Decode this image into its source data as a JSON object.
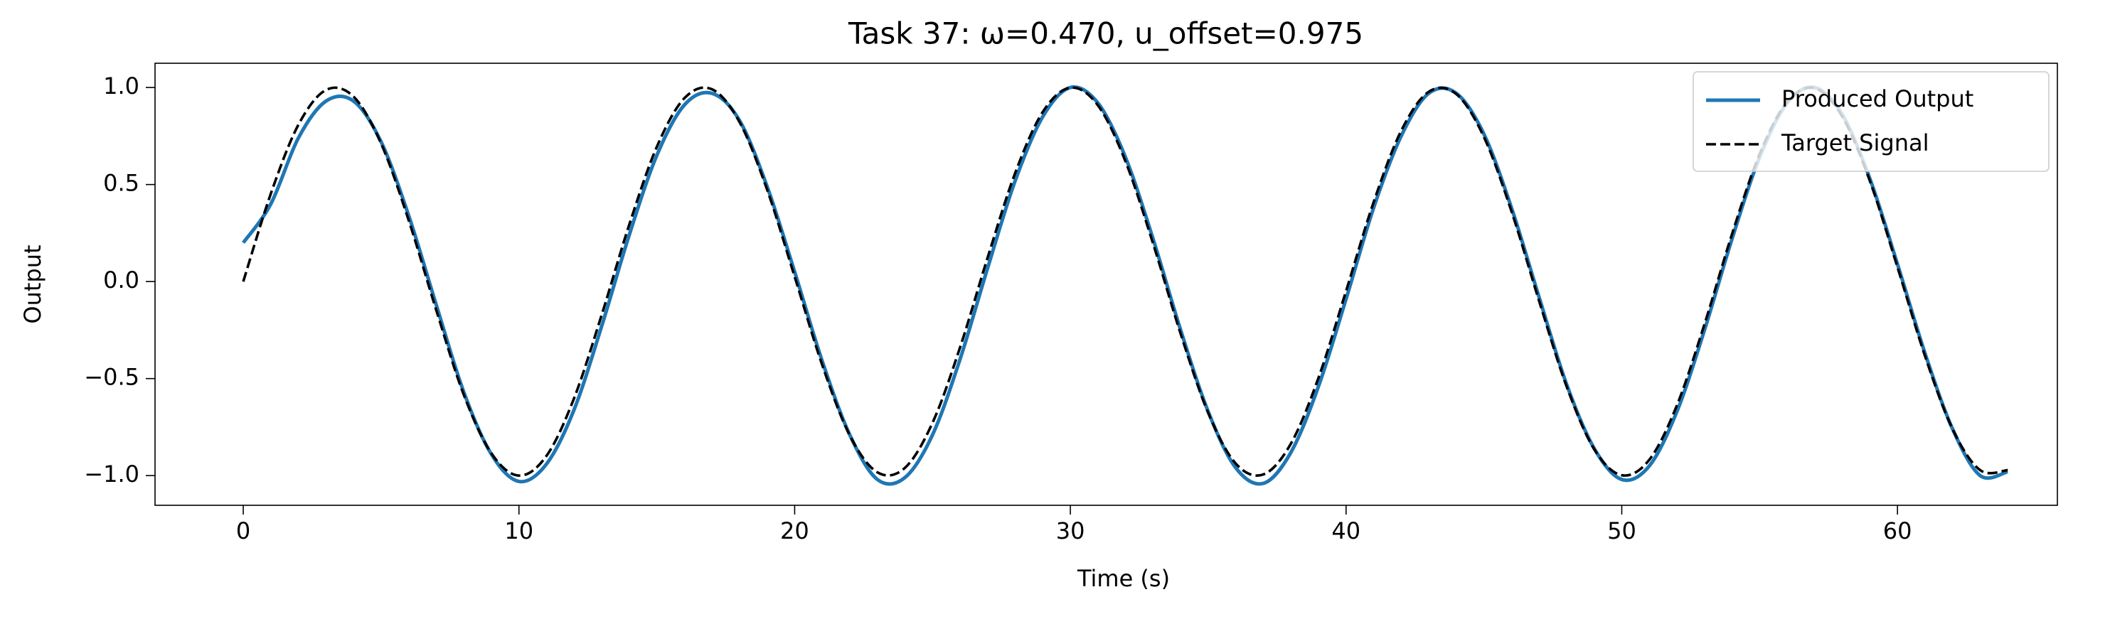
{
  "chart_data": {
    "type": "line",
    "title": "Task 37: ω=0.470, u_offset=0.975",
    "xlabel": "Time (s)",
    "ylabel": "Output",
    "x": [
      0,
      1,
      2,
      3,
      4,
      5,
      6,
      7,
      8,
      9,
      10,
      11,
      12,
      13,
      14,
      15,
      16,
      17,
      18,
      19,
      20,
      21,
      22,
      23,
      24,
      25,
      26,
      27,
      28,
      29,
      30,
      31,
      32,
      33,
      34,
      35,
      36,
      37,
      38,
      39,
      40,
      41,
      42,
      43,
      44,
      45,
      46,
      47,
      48,
      49,
      50,
      51,
      52,
      53,
      54,
      55,
      56,
      57,
      58,
      59,
      60,
      61,
      62,
      63,
      64
    ],
    "series": [
      {
        "name": "Produced Output",
        "color": "#1f77b4",
        "linestyle": "solid",
        "values": [
          0.2,
          0.4,
          0.74,
          0.93,
          0.93,
          0.72,
          0.34,
          -0.12,
          -0.57,
          -0.89,
          -1.03,
          -0.94,
          -0.66,
          -0.23,
          0.24,
          0.65,
          0.91,
          0.97,
          0.83,
          0.49,
          0.05,
          -0.41,
          -0.79,
          -1.02,
          -1.01,
          -0.79,
          -0.4,
          0.07,
          0.52,
          0.85,
          1.0,
          0.92,
          0.64,
          0.22,
          -0.25,
          -0.67,
          -0.96,
          -1.04,
          -0.88,
          -0.54,
          -0.09,
          0.38,
          0.75,
          0.97,
          0.97,
          0.76,
          0.38,
          -0.08,
          -0.53,
          -0.86,
          -1.02,
          -0.95,
          -0.67,
          -0.25,
          0.22,
          0.64,
          0.92,
          1.0,
          0.86,
          0.53,
          0.09,
          -0.37,
          -0.76,
          -1.0,
          -0.98
        ]
      },
      {
        "name": "Target Signal",
        "color": "#000000",
        "linestyle": "dashed",
        "values": [
          0,
          0.453,
          0.808,
          0.987,
          0.953,
          0.711,
          0.316,
          -0.147,
          -0.584,
          -0.885,
          -1.0,
          -0.898,
          -0.601,
          -0.172,
          0.293,
          0.694,
          0.945,
          0.991,
          0.822,
          0.474,
          0.025,
          -0.43,
          -0.793,
          -0.983,
          -0.96,
          -0.728,
          -0.339,
          0.124,
          0.56,
          0.874,
          0.999,
          0.908,
          0.619,
          0.196,
          -0.269,
          -0.677,
          -0.938,
          -0.994,
          -0.835,
          -0.496,
          -0.049,
          0.409,
          0.777,
          0.978,
          0.966,
          0.745,
          0.362,
          -0.099,
          -0.541,
          -0.864,
          -0.998,
          -0.918,
          -0.638,
          -0.22,
          0.245,
          0.657,
          0.927,
          0.996,
          0.849,
          0.518,
          0.074,
          -0.384,
          -0.761,
          -0.972,
          -0.972
        ]
      }
    ],
    "xlim": [
      -3.2,
      65.8
    ],
    "xticks": [
      0,
      10,
      20,
      30,
      40,
      50,
      60
    ],
    "ylim": [
      -1.153,
      1.125
    ],
    "yticks": [
      {
        "value": -1,
        "label": "−1.0"
      },
      {
        "value": -0.5,
        "label": "−0.5"
      },
      {
        "value": 0,
        "label": "0.0"
      },
      0.5,
      {
        "value": 1,
        "label": "1.0"
      }
    ],
    "legend": "upper right",
    "grid": false
  }
}
